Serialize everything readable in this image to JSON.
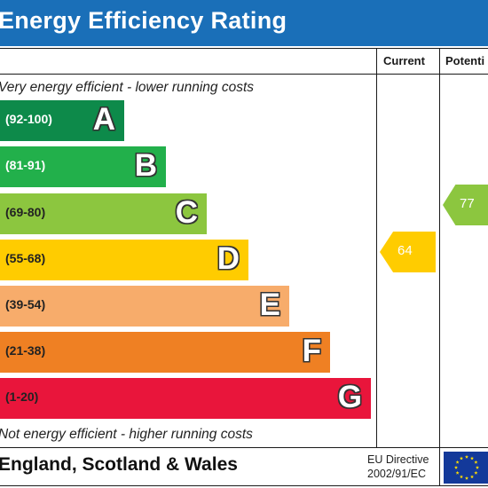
{
  "header": {
    "title": "Energy Efficiency Rating",
    "bg_color": "#1a6fb8"
  },
  "columns": {
    "current": "Current",
    "potential": "Potenti"
  },
  "captions": {
    "top": "Very energy efficient - lower running costs",
    "bottom": "Not energy efficient - higher running costs"
  },
  "bands": [
    {
      "letter": "A",
      "range": "(92-100)",
      "color": "#0d8a4a",
      "range_color": "#ffffff"
    },
    {
      "letter": "B",
      "range": "(81-91)",
      "color": "#22b04b",
      "range_color": "#ffffff"
    },
    {
      "letter": "C",
      "range": "(69-80)",
      "color": "#8cc63f",
      "range_color": "#222222"
    },
    {
      "letter": "D",
      "range": "(55-68)",
      "color": "#ffcc00",
      "range_color": "#222222"
    },
    {
      "letter": "E",
      "range": "(39-54)",
      "color": "#f7ac6b",
      "range_color": "#222222"
    },
    {
      "letter": "F",
      "range": "(21-38)",
      "color": "#ef8023",
      "range_color": "#222222"
    },
    {
      "letter": "G",
      "range": "(1-20)",
      "color": "#e9153b",
      "range_color": "#222222"
    }
  ],
  "ratings": {
    "current": {
      "value": "64",
      "band": "D",
      "color": "#ffcc00"
    },
    "potential": {
      "value": "77",
      "band": "C",
      "color": "#8cc63f"
    }
  },
  "footer": {
    "region": "England, Scotland & Wales",
    "directive_line1": "EU Directive",
    "directive_line2": "2002/91/EC",
    "flag_icon": "eu-flag-icon",
    "flag_color": "#13399a",
    "star_color": "#ffdd00"
  }
}
